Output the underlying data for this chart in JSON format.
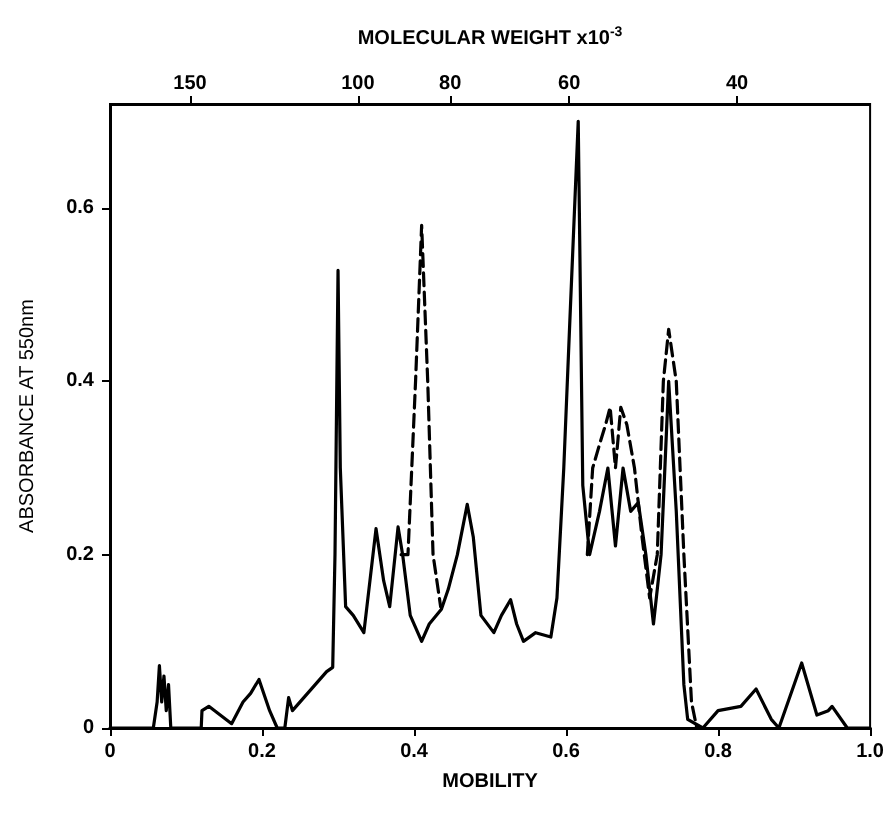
{
  "chart_data": {
    "type": "line",
    "xlabel": "MOBILITY",
    "ylabel": "ABSORBANCE AT 550nm",
    "x2label": "MOLECULAR WEIGHT x10$^{-3}$",
    "xlim": [
      0,
      1
    ],
    "xticks": [
      0,
      {
        "value": 0.2,
        "label": "0.2"
      },
      {
        "value": 0.4,
        "label": "0.4"
      },
      {
        "value": 0.6,
        "label": "0.6"
      },
      {
        "value": 0.8,
        "label": "0.8"
      },
      {
        "value": 1,
        "label": "1.0"
      }
    ],
    "ylim": [
      0,
      0.72
    ],
    "yticks": [
      0,
      {
        "value": 0.2,
        "label": "0.2"
      },
      {
        "value": 0.4,
        "label": "0.4"
      },
      {
        "value": 0.6,
        "label": "0.6"
      }
    ],
    "x2lim": [
      182,
      29
    ],
    "x2ticks": [
      150,
      100,
      80,
      60,
      40
    ],
    "grid": false,
    "log": "x2",
    "marker": "none",
    "series": [
      {
        "color": "#000000",
        "line_style": "solid",
        "x": [
          0,
          0.057,
          0.062,
          0.065,
          0.068,
          0.071,
          0.074,
          0.077,
          0.08,
          0.12,
          0.121,
          0.13,
          0.145,
          0.16,
          0.175,
          0.185,
          0.196,
          0.21,
          0.22,
          0.23,
          0.235,
          0.24,
          0.255,
          0.27,
          0.285,
          0.293,
          0.296,
          0.3,
          0.303,
          0.31,
          0.32,
          0.334,
          0.342,
          0.35,
          0.36,
          0.368,
          0.379,
          0.385,
          0.395,
          0.41,
          0.42,
          0.436,
          0.445,
          0.457,
          0.47,
          0.478,
          0.488,
          0.505,
          0.515,
          0.527,
          0.535,
          0.544,
          0.56,
          0.58,
          0.588,
          0.597,
          0.605,
          0.616,
          0.622,
          0.631,
          0.644,
          0.655,
          0.665,
          0.675,
          0.685,
          0.695,
          0.705,
          0.715,
          0.725,
          0.735,
          0.745,
          0.755,
          0.76,
          0.78,
          0.8,
          0.83,
          0.85,
          0.87,
          0.88,
          0.9,
          0.91,
          0.925,
          0.93,
          0.945,
          0.95,
          0.97,
          1
        ],
        "values": [
          0,
          0,
          0.03,
          0.072,
          0.03,
          0.06,
          0.02,
          0.05,
          0,
          0,
          0.02,
          0.025,
          0.015,
          0.005,
          0.03,
          0.04,
          0.056,
          0.02,
          0,
          0,
          0.035,
          0.02,
          0.035,
          0.05,
          0.065,
          0.07,
          0.2,
          0.528,
          0.3,
          0.14,
          0.13,
          0.11,
          0.17,
          0.23,
          0.17,
          0.14,
          0.232,
          0.2,
          0.13,
          0.1,
          0.12,
          0.137,
          0.16,
          0.2,
          0.258,
          0.22,
          0.13,
          0.11,
          0.13,
          0.148,
          0.12,
          0.1,
          0.11,
          0.105,
          0.15,
          0.3,
          0.47,
          0.7,
          0.28,
          0.2,
          0.25,
          0.3,
          0.21,
          0.3,
          0.25,
          0.26,
          0.2,
          0.12,
          0.2,
          0.4,
          0.25,
          0.05,
          0.01,
          0,
          0.02,
          0.025,
          0.045,
          0.01,
          0,
          0.05,
          0.075,
          0.03,
          0.015,
          0.02,
          0.025,
          0,
          0
        ]
      },
      {
        "color": "#000000",
        "line_style": "dashed",
        "x": [
          0.383,
          0.392,
          0.402,
          0.41,
          0.418,
          0.425,
          0.435,
          0.55,
          0.628,
          0.635,
          0.645,
          0.652,
          0.658,
          0.665,
          0.672,
          0.68,
          0.69,
          0.7,
          0.71,
          0.72,
          0.728,
          0.735,
          0.745,
          0.755,
          0.765,
          0.772
        ],
        "values": [
          0.2,
          0.2,
          0.4,
          0.58,
          0.4,
          0.2,
          0.14,
          null,
          0.2,
          0.3,
          0.33,
          0.35,
          0.37,
          0.3,
          0.37,
          0.35,
          0.3,
          0.22,
          0.15,
          0.2,
          0.4,
          0.46,
          0.4,
          0.2,
          0.03,
          0
        ]
      }
    ]
  }
}
